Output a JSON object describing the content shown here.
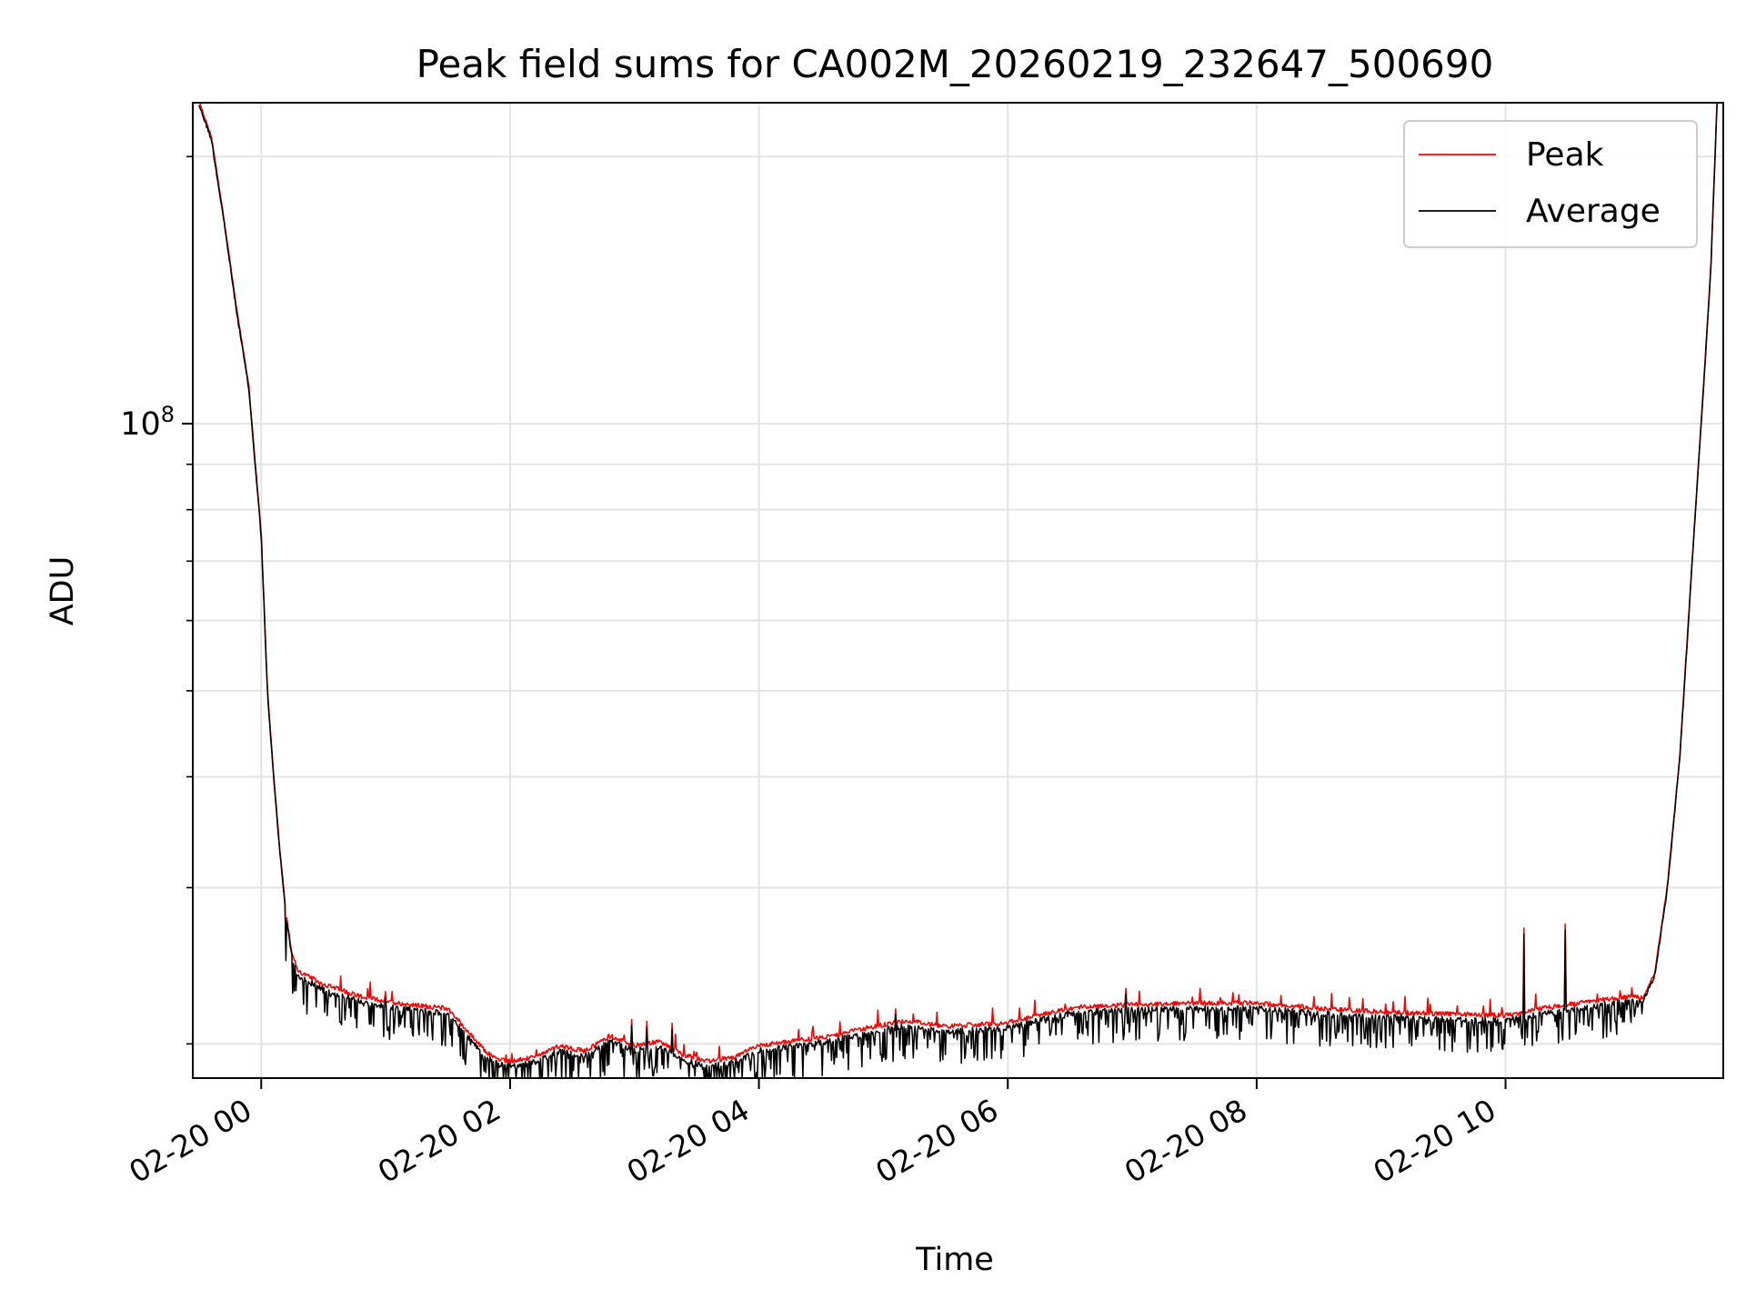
{
  "chart_data": {
    "type": "line",
    "title": "Peak field sums for CA002M_20260219_232647_500690",
    "xlabel": "Time",
    "ylabel": "ADU",
    "x_unit": "hours (2026-02-20)",
    "xlim": [
      -0.55,
      11.75
    ],
    "yscale": "log",
    "ylim": [
      18300000,
      230000000
    ],
    "x_ticks": [
      {
        "value": 0,
        "label": "02-20 00"
      },
      {
        "value": 2,
        "label": "02-20 02"
      },
      {
        "value": 4,
        "label": "02-20 04"
      },
      {
        "value": 6,
        "label": "02-20 06"
      },
      {
        "value": 8,
        "label": "02-20 08"
      },
      {
        "value": 10,
        "label": "02-20 10"
      }
    ],
    "y_major_ticks": [
      {
        "value": 100000000,
        "base": "10",
        "exp": "8"
      }
    ],
    "y_minor_ticks": [
      20000000,
      30000000,
      40000000,
      50000000,
      60000000,
      70000000,
      80000000,
      90000000,
      200000000
    ],
    "grid": true,
    "legend_position": "top-right",
    "series": [
      {
        "name": "Peak",
        "color": "#ff0000"
      },
      {
        "name": "Average",
        "color": "#000000"
      }
    ],
    "trend": {
      "x": [
        -0.5,
        -0.4,
        -0.3,
        -0.2,
        -0.1,
        0.0,
        0.05,
        0.1,
        0.15,
        0.2,
        0.25,
        0.3,
        0.5,
        0.8,
        1.0,
        1.2,
        1.5,
        1.6,
        1.8,
        1.9,
        2.0,
        2.2,
        2.4,
        2.6,
        2.8,
        3.0,
        3.2,
        3.4,
        3.6,
        3.8,
        4.0,
        4.5,
        5.0,
        5.2,
        5.5,
        6.0,
        6.3,
        6.6,
        7.0,
        7.5,
        8.0,
        8.5,
        9.0,
        9.5,
        10.0,
        10.3,
        10.6,
        11.0,
        11.1,
        11.2,
        11.3,
        11.4,
        11.5,
        11.6,
        11.65,
        11.7
      ],
      "y": [
        230000000,
        210000000,
        170000000,
        135000000,
        110000000,
        75000000,
        50000000,
        40000000,
        33000000,
        28000000,
        25000000,
        24000000,
        23200000,
        22500000,
        22200000,
        22000000,
        21800000,
        21000000,
        19500000,
        19100000,
        19000000,
        19200000,
        19800000,
        19500000,
        20300000,
        19800000,
        20000000,
        19300000,
        19000000,
        19200000,
        19800000,
        20200000,
        20900000,
        21100000,
        20800000,
        21000000,
        21500000,
        21900000,
        22000000,
        22100000,
        22100000,
        21800000,
        21600000,
        21500000,
        21400000,
        21800000,
        22100000,
        22500000,
        22400000,
        24000000,
        30000000,
        42000000,
        70000000,
        115000000,
        150000000,
        230000000
      ]
    },
    "peak_spikes": [
      {
        "x": 10.15,
        "y": 27000000
      },
      {
        "x": 10.48,
        "y": 27300000
      },
      {
        "x": 6.95,
        "y": 23100000
      },
      {
        "x": 0.2,
        "y": 25200000
      },
      {
        "x": 1.0,
        "y": 22900000
      },
      {
        "x": 3.1,
        "y": 21200000
      },
      {
        "x": 5.1,
        "y": 21900000
      },
      {
        "x": 3.3,
        "y": 21100000
      },
      {
        "x": 2.98,
        "y": 21300000
      }
    ]
  }
}
